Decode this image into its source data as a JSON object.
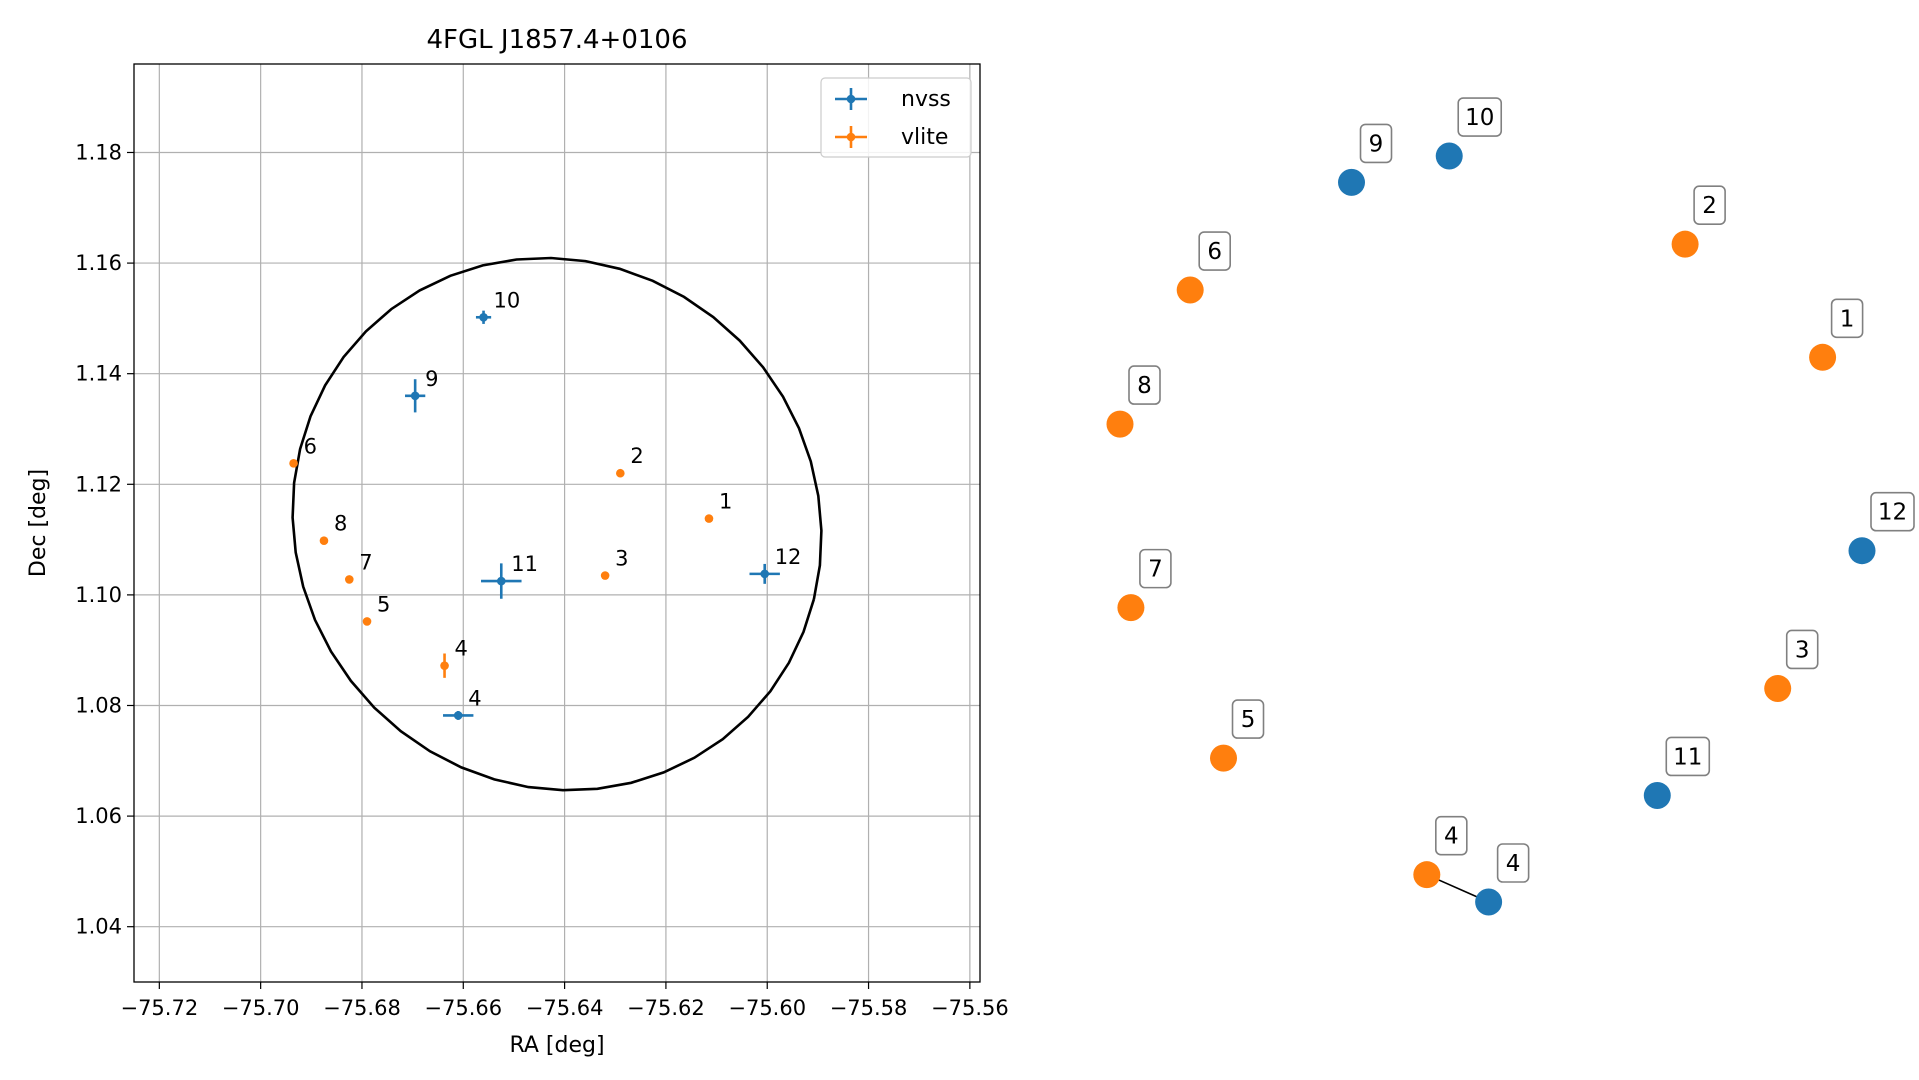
{
  "chart_data": [
    {
      "type": "scatter",
      "title": "4FGL J1857.4+0106",
      "xlabel": "RA [deg]",
      "ylabel": "Dec [deg]",
      "xlim": [
        -75.725,
        -75.558
      ],
      "ylim": [
        1.03,
        1.196
      ],
      "xticks": [
        -75.72,
        -75.7,
        -75.68,
        -75.66,
        -75.64,
        -75.62,
        -75.6,
        -75.58,
        -75.56
      ],
      "xtick_labels": [
        "−75.72",
        "−75.70",
        "−75.68",
        "−75.66",
        "−75.64",
        "−75.62",
        "−75.60",
        "−75.58",
        "−75.56"
      ],
      "yticks": [
        1.04,
        1.06,
        1.08,
        1.1,
        1.12,
        1.14,
        1.16,
        1.18
      ],
      "ytick_labels": [
        "1.04",
        "1.06",
        "1.08",
        "1.10",
        "1.12",
        "1.14",
        "1.16",
        "1.18"
      ],
      "grid": true,
      "legend": {
        "placement": "top-right",
        "entries": [
          "nvss",
          "vlite"
        ]
      },
      "ellipse": {
        "center": [
          -75.6415,
          1.1128
        ],
        "semi_axis_ra": 0.0525,
        "semi_axis_dec": 0.0478,
        "rotation_deg": -15
      },
      "series": [
        {
          "name": "nvss",
          "color": "#1f77b4",
          "points": [
            {
              "label": "4",
              "x": -75.661,
              "y": 1.0782,
              "xerr": 0.003,
              "yerr": 0.0008
            },
            {
              "label": "9",
              "x": -75.6695,
              "y": 1.136,
              "xerr": 0.002,
              "yerr": 0.003
            },
            {
              "label": "10",
              "x": -75.656,
              "y": 1.1502,
              "xerr": 0.0015,
              "yerr": 0.0012
            },
            {
              "label": "11",
              "x": -75.6525,
              "y": 1.1025,
              "xerr": 0.004,
              "yerr": 0.0032
            },
            {
              "label": "12",
              "x": -75.6005,
              "y": 1.1038,
              "xerr": 0.003,
              "yerr": 0.0018
            }
          ]
        },
        {
          "name": "vlite",
          "color": "#ff7f0e",
          "points": [
            {
              "label": "1",
              "x": -75.6115,
              "y": 1.1138,
              "xerr": 0,
              "yerr": 0
            },
            {
              "label": "2",
              "x": -75.629,
              "y": 1.122,
              "xerr": 0,
              "yerr": 0
            },
            {
              "label": "3",
              "x": -75.632,
              "y": 1.1035,
              "xerr": 0,
              "yerr": 0
            },
            {
              "label": "4",
              "x": -75.6637,
              "y": 1.0872,
              "xerr": 0.0008,
              "yerr": 0.0022
            },
            {
              "label": "5",
              "x": -75.679,
              "y": 1.0952,
              "xerr": 0,
              "yerr": 0
            },
            {
              "label": "6",
              "x": -75.6935,
              "y": 1.1238,
              "xerr": 0,
              "yerr": 0
            },
            {
              "label": "7",
              "x": -75.6825,
              "y": 1.1028,
              "xerr": 0,
              "yerr": 0
            },
            {
              "label": "8",
              "x": -75.6875,
              "y": 1.1098,
              "xerr": 0,
              "yerr": 0
            }
          ]
        }
      ]
    },
    {
      "type": "network",
      "nodes": [
        {
          "label": "10",
          "color": "#1f77b4",
          "x": 0.4437,
          "y": 0.9503
        },
        {
          "label": "9",
          "color": "#1f77b4",
          "x": 0.312,
          "y": 0.9167
        },
        {
          "label": "2",
          "color": "#ff7f0e",
          "x": 0.7616,
          "y": 0.838
        },
        {
          "label": "6",
          "color": "#ff7f0e",
          "x": 0.0946,
          "y": 0.7796
        },
        {
          "label": "1",
          "color": "#ff7f0e",
          "x": 0.9469,
          "y": 0.6939
        },
        {
          "label": "8",
          "color": "#ff7f0e",
          "x": 0.0,
          "y": 0.6088
        },
        {
          "label": "12",
          "color": "#1f77b4",
          "x": 1.0,
          "y": 0.4475
        },
        {
          "label": "7",
          "color": "#ff7f0e",
          "x": 0.0147,
          "y": 0.375
        },
        {
          "label": "3",
          "color": "#ff7f0e",
          "x": 0.8864,
          "y": 0.272
        },
        {
          "label": "5",
          "color": "#ff7f0e",
          "x": 0.1395,
          "y": 0.1833
        },
        {
          "label": "11",
          "color": "#1f77b4",
          "x": 0.7241,
          "y": 0.1357
        },
        {
          "label": "4",
          "color": "#ff7f0e",
          "x": 0.4135,
          "y": 0.0348
        },
        {
          "label": "4",
          "color": "#1f77b4",
          "x": 0.4968,
          "y": 0.0
        }
      ],
      "edges": [
        [
          11,
          12
        ]
      ]
    }
  ]
}
